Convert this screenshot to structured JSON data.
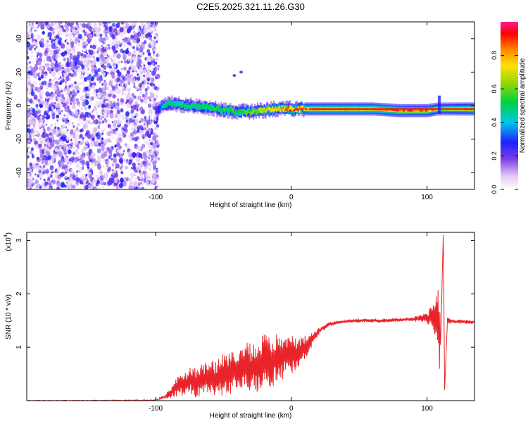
{
  "chart_data": [
    {
      "type": "heatmap",
      "title": "C2E5.2025.321.11.26.G30",
      "xlabel": "Height of straight line (km)",
      "ylabel": "Frequency (Hz)",
      "xlim": [
        -195,
        135
      ],
      "ylim": [
        -50,
        50
      ],
      "x_ticks": [
        -100,
        0,
        100
      ],
      "x_tick_labels": [
        "-100",
        "0",
        "100"
      ],
      "y_ticks": [
        -40,
        -20,
        0,
        20,
        40
      ],
      "y_tick_labels": [
        "-40",
        "-20",
        "0",
        "20",
        "40"
      ],
      "noise_region_x": [
        -195,
        -100
      ],
      "ridge": {
        "x": [
          -100,
          -95,
          -90,
          -85,
          -80,
          -75,
          -70,
          -65,
          -60,
          -55,
          -50,
          -45,
          -40,
          -35,
          -30,
          -25,
          -20,
          -15,
          -10,
          -5,
          0,
          10,
          20,
          40,
          60,
          80,
          90,
          100,
          108,
          110,
          135
        ],
        "freq": [
          -3,
          0,
          1,
          1,
          0,
          0,
          0,
          -1,
          -1,
          -2,
          -3,
          -3,
          -4,
          -3,
          -4,
          -3,
          -3,
          -2,
          -2,
          -2,
          -2,
          -2,
          -2,
          -2,
          -2,
          -3,
          -3,
          -3,
          -2,
          -2,
          -2
        ],
        "amplitude": [
          0.2,
          0.4,
          0.5,
          0.45,
          0.5,
          0.45,
          0.5,
          0.5,
          0.5,
          0.5,
          0.5,
          0.55,
          0.5,
          0.55,
          0.6,
          0.6,
          0.7,
          0.75,
          0.8,
          0.8,
          0.85,
          0.9,
          0.95,
          0.95,
          0.95,
          0.95,
          0.9,
          0.9,
          0.7,
          0.6,
          0.9
        ]
      },
      "isolated_points": [
        {
          "x": -42,
          "freq": 18
        },
        {
          "x": -37,
          "freq": 20
        }
      ],
      "colorbar": {
        "label": "Normalized spectral amplitude",
        "range": [
          0,
          1
        ],
        "ticks": [
          0.0,
          0.2,
          0.4,
          0.6,
          0.8
        ],
        "tick_labels": [
          "0.0",
          "0.2",
          "0.4",
          "0.6",
          "0.8"
        ]
      }
    },
    {
      "type": "line",
      "xlabel": "Height of straight line (km)",
      "ylabel": "SNR (10 * v/v)",
      "exponent_label": "(x10",
      "exponent_value": "4",
      "xlim": [
        -195,
        135
      ],
      "ylim": [
        0,
        3.15
      ],
      "x_ticks": [
        -100,
        0,
        100
      ],
      "x_tick_labels": [
        "-100",
        "0",
        "100"
      ],
      "y_ticks": [
        1,
        2,
        3
      ],
      "y_tick_labels": [
        "1",
        "2",
        "3"
      ],
      "series": [
        {
          "name": "SNR",
          "color": "#e8242a",
          "x": [
            -195,
            -150,
            -105,
            -100,
            -95,
            -90,
            -85,
            -80,
            -75,
            -70,
            -65,
            -60,
            -55,
            -50,
            -45,
            -40,
            -35,
            -30,
            -25,
            -20,
            -15,
            -10,
            -5,
            0,
            5,
            10,
            15,
            20,
            25,
            30,
            40,
            50,
            60,
            70,
            80,
            90,
            95,
            100,
            105,
            108,
            110,
            111,
            112,
            113,
            115,
            120,
            125,
            130,
            135
          ],
          "values": [
            0.0,
            0.0,
            0.01,
            0.02,
            0.05,
            0.12,
            0.25,
            0.3,
            0.38,
            0.35,
            0.4,
            0.45,
            0.4,
            0.5,
            0.55,
            0.6,
            0.62,
            0.58,
            0.68,
            0.75,
            0.72,
            0.8,
            0.85,
            0.85,
            0.9,
            1.0,
            1.15,
            1.3,
            1.38,
            1.45,
            1.48,
            1.5,
            1.5,
            1.5,
            1.52,
            1.52,
            1.55,
            1.55,
            1.55,
            1.6,
            1.0,
            2.1,
            3.15,
            0.2,
            1.5,
            1.48,
            1.48,
            1.47,
            1.47
          ],
          "noise_amplitude": [
            0.0,
            0.0,
            0.0,
            0.0,
            0.02,
            0.06,
            0.15,
            0.18,
            0.2,
            0.25,
            0.28,
            0.3,
            0.32,
            0.34,
            0.36,
            0.4,
            0.42,
            0.42,
            0.45,
            0.42,
            0.4,
            0.38,
            0.35,
            0.3,
            0.25,
            0.2,
            0.12,
            0.06,
            0.04,
            0.03,
            0.03,
            0.03,
            0.03,
            0.03,
            0.03,
            0.03,
            0.05,
            0.08,
            0.25,
            0.5,
            0.8,
            0.6,
            0.0,
            0.0,
            0.05,
            0.03,
            0.03,
            0.03,
            0.03
          ]
        }
      ]
    }
  ]
}
